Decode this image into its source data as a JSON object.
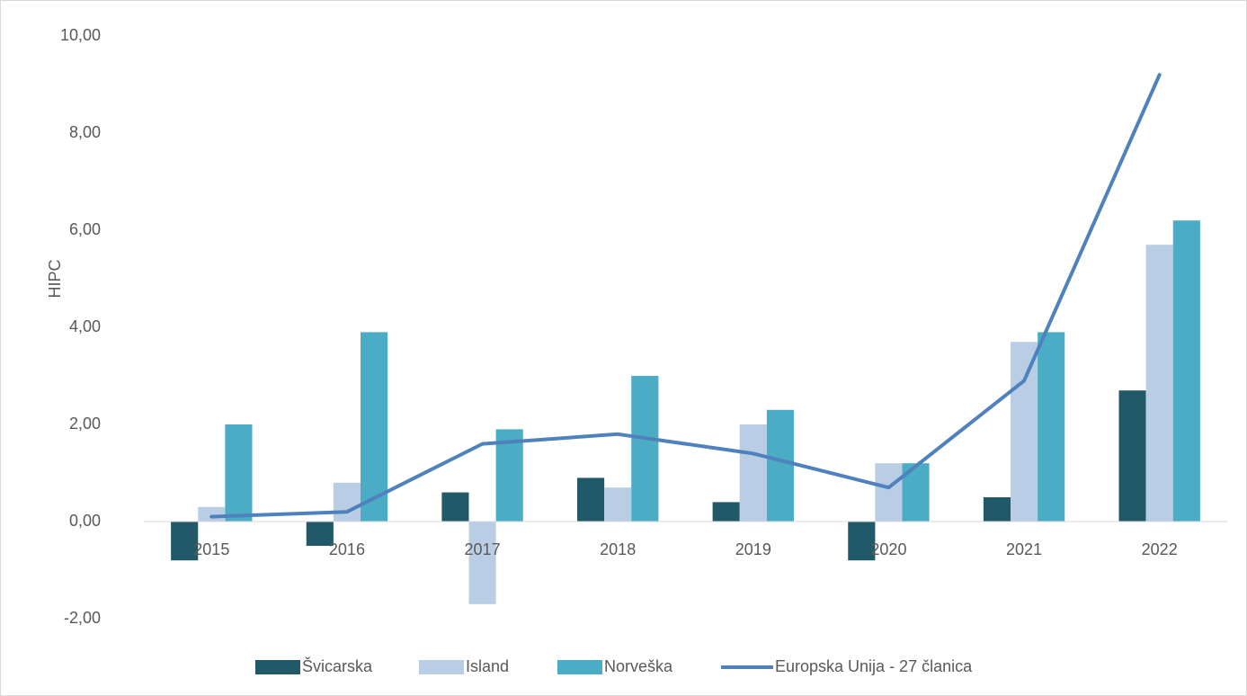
{
  "chart_data": {
    "type": "bar",
    "y_label": "HIPC",
    "categories": [
      "2015",
      "2016",
      "2017",
      "2018",
      "2019",
      "2020",
      "2021",
      "2022"
    ],
    "series": [
      {
        "name": "Švicarska",
        "type": "bar",
        "color": "#215968",
        "values": [
          -0.8,
          -0.5,
          0.6,
          0.9,
          0.4,
          -0.8,
          0.5,
          2.7
        ]
      },
      {
        "name": "Island",
        "type": "bar",
        "color": "#b9cde5",
        "values": [
          0.3,
          0.8,
          -1.7,
          0.7,
          2.0,
          1.2,
          3.7,
          5.7
        ]
      },
      {
        "name": "Norveška",
        "type": "bar",
        "color": "#4bacc6",
        "values": [
          2.0,
          3.9,
          1.9,
          3.0,
          2.3,
          1.2,
          3.9,
          6.2
        ]
      },
      {
        "name": "Europska Unija - 27 članica",
        "type": "line",
        "color": "#4f81bd",
        "values": [
          0.1,
          0.2,
          1.6,
          1.8,
          1.4,
          0.7,
          2.9,
          9.2
        ]
      }
    ],
    "ylim": [
      -2,
      10
    ],
    "yticks": [
      {
        "value": -2,
        "label": "-2,00"
      },
      {
        "value": 0,
        "label": "0,00"
      },
      {
        "value": 2,
        "label": "2,00"
      },
      {
        "value": 4,
        "label": "4,00"
      },
      {
        "value": 6,
        "label": "6,00"
      },
      {
        "value": 8,
        "label": "8,00"
      },
      {
        "value": 10,
        "label": "10,00"
      }
    ],
    "grid": false,
    "legend": "bottom"
  }
}
